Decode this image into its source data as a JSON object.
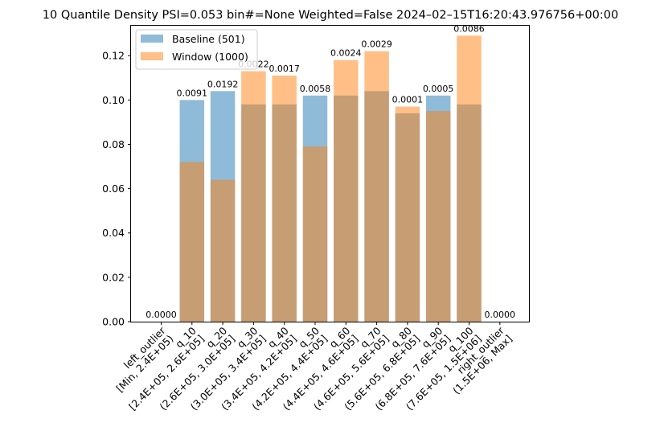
{
  "chart_data": {
    "type": "bar",
    "title": "10 Quantile Density PSI=0.053 bin#=None Weighted=False 2024–02–15T16:20:43.976756+00:00",
    "xlabel": "",
    "ylabel": "",
    "ylim": [
      0,
      0.1335
    ],
    "yticks": [
      0.0,
      0.02,
      0.04,
      0.06,
      0.08,
      0.1,
      0.12
    ],
    "ytick_labels": [
      "0.00",
      "0.02",
      "0.04",
      "0.06",
      "0.08",
      "0.10",
      "0.12"
    ],
    "categories": [
      [
        "left_outlier",
        "[Min, 2.4E+05)"
      ],
      [
        "q_10",
        "[2.4E+05, 2.6E+05]"
      ],
      [
        "q_20",
        "(2.6E+05, 3.0E+05]"
      ],
      [
        "q_30",
        "(3.0E+05, 3.4E+05]"
      ],
      [
        "q_40",
        "(3.4E+05, 4.2E+05]"
      ],
      [
        "q_50",
        "(4.2E+05, 4.4E+05]"
      ],
      [
        "q_60",
        "(4.4E+05, 4.6E+05]"
      ],
      [
        "q_70",
        "(4.6E+05, 5.6E+05]"
      ],
      [
        "q_80",
        "(5.6E+05, 6.8E+05]"
      ],
      [
        "q_90",
        "(6.8E+05, 7.6E+05]"
      ],
      [
        "q_100",
        "(7.6E+05, 1.5E+06]"
      ],
      [
        "right_outlier",
        "(1.5E+06, Max]"
      ]
    ],
    "series": [
      {
        "name": "Baseline (501)",
        "color": "#1f77b4",
        "values": [
          0.0,
          0.1,
          0.104,
          0.098,
          0.098,
          0.102,
          0.102,
          0.104,
          0.094,
          0.102,
          0.098,
          0.0
        ]
      },
      {
        "name": "Window (1000)",
        "color": "#ff7f0e",
        "values": [
          0.0,
          0.072,
          0.064,
          0.113,
          0.111,
          0.079,
          0.118,
          0.122,
          0.097,
          0.095,
          0.129,
          0.0
        ]
      }
    ],
    "bar_labels": [
      "0.0000",
      "0.0091",
      "0.0192",
      "0.0022",
      "0.0017",
      "0.0058",
      "0.0024",
      "0.0029",
      "0.0001",
      "0.0005",
      "0.0086",
      "0.0000"
    ],
    "legend_position": "upper-left",
    "grid": false
  }
}
